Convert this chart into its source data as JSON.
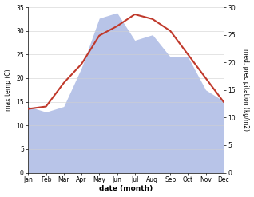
{
  "months": [
    "Jan",
    "Feb",
    "Mar",
    "Apr",
    "May",
    "Jun",
    "Jul",
    "Aug",
    "Sep",
    "Oct",
    "Nov",
    "Dec"
  ],
  "x": [
    1,
    2,
    3,
    4,
    5,
    6,
    7,
    8,
    9,
    10,
    11,
    12
  ],
  "temperature": [
    13.5,
    14.0,
    19.0,
    23.0,
    29.0,
    31.0,
    33.5,
    32.5,
    30.0,
    25.0,
    20.0,
    15.0
  ],
  "precipitation": [
    12.0,
    11.0,
    12.0,
    19.0,
    28.0,
    29.0,
    24.0,
    25.0,
    21.0,
    21.0,
    15.0,
    13.0
  ],
  "temp_color": "#c0392b",
  "precip_color": "#b8c4e8",
  "left_ylabel": "max temp (C)",
  "right_ylabel": "med. precipitation (kg/m2)",
  "xlabel": "date (month)",
  "left_ylim": [
    0,
    35
  ],
  "right_ylim": [
    0,
    30
  ],
  "left_yticks": [
    0,
    5,
    10,
    15,
    20,
    25,
    30,
    35
  ],
  "right_yticks": [
    0,
    5,
    10,
    15,
    20,
    25,
    30
  ],
  "background_color": "#ffffff",
  "temp_linewidth": 1.5
}
